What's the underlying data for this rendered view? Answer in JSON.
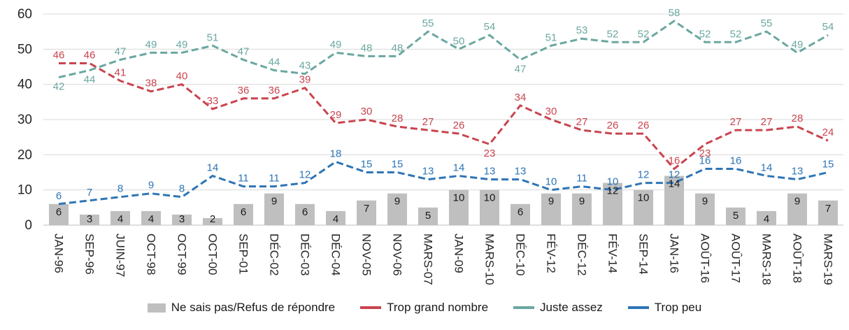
{
  "chart_data": {
    "type": "combo",
    "title": "",
    "xlabel": "",
    "ylabel": "",
    "ylim": [
      0,
      60
    ],
    "ytick_step": 10,
    "grid": true,
    "legend_position": "bottom",
    "categories": [
      "JAN-96",
      "SEP-96",
      "JUIN-97",
      "OCT-98",
      "OCT-99",
      "OCT-00",
      "SEP-01",
      "DÉC-02",
      "DÉC-03",
      "DÉC-04",
      "NOV-05",
      "NOV-06",
      "MARS-07",
      "JAN-09",
      "MARS-10",
      "DÉC-10",
      "FÉV-12",
      "DÉC-12",
      "FÉV-14",
      "SEP-14",
      "JAN-16",
      "AOÛT-16",
      "AOÛT-17",
      "MARS-18",
      "AOÛT-18",
      "MARS-19"
    ],
    "series": [
      {
        "id": "ne-sais-pas",
        "name": "Ne sais pas/Refus de répondre",
        "type": "bar",
        "color": "#bfbfbf",
        "label_color": "#1a1a1a",
        "values": [
          6,
          3,
          4,
          4,
          3,
          2,
          6,
          9,
          6,
          4,
          7,
          9,
          5,
          10,
          10,
          6,
          9,
          9,
          12,
          10,
          14,
          9,
          5,
          4,
          9,
          7
        ],
        "labels_below": []
      },
      {
        "id": "trop-grand-nombre",
        "name": "Trop grand nombre",
        "type": "line",
        "color": "#c9444f",
        "label_color": "#c9444f",
        "values": [
          46,
          46,
          41,
          38,
          40,
          33,
          36,
          36,
          39,
          29,
          30,
          28,
          27,
          26,
          23,
          34,
          30,
          27,
          26,
          26,
          16,
          23,
          27,
          27,
          28,
          24
        ],
        "labels_below": [
          14,
          21
        ]
      },
      {
        "id": "juste-assez",
        "name": "Juste assez",
        "type": "line",
        "color": "#6aa7a0",
        "label_color": "#6aa7a0",
        "values": [
          42,
          44,
          47,
          49,
          49,
          51,
          47,
          44,
          43,
          49,
          48,
          48,
          55,
          50,
          54,
          47,
          51,
          53,
          52,
          52,
          58,
          52,
          52,
          55,
          49,
          54
        ],
        "labels_below": [
          0,
          1,
          15
        ]
      },
      {
        "id": "trop-peu",
        "name": "Trop peu",
        "type": "line",
        "color": "#2e75b6",
        "label_color": "#2e75b6",
        "values": [
          6,
          7,
          8,
          9,
          8,
          14,
          11,
          11,
          12,
          18,
          15,
          15,
          13,
          14,
          13,
          13,
          10,
          11,
          10,
          12,
          12,
          16,
          16,
          14,
          13,
          15
        ],
        "labels_below": []
      }
    ]
  },
  "axis": {
    "y_ticks": [
      "0",
      "10",
      "20",
      "30",
      "40",
      "50",
      "60"
    ]
  }
}
